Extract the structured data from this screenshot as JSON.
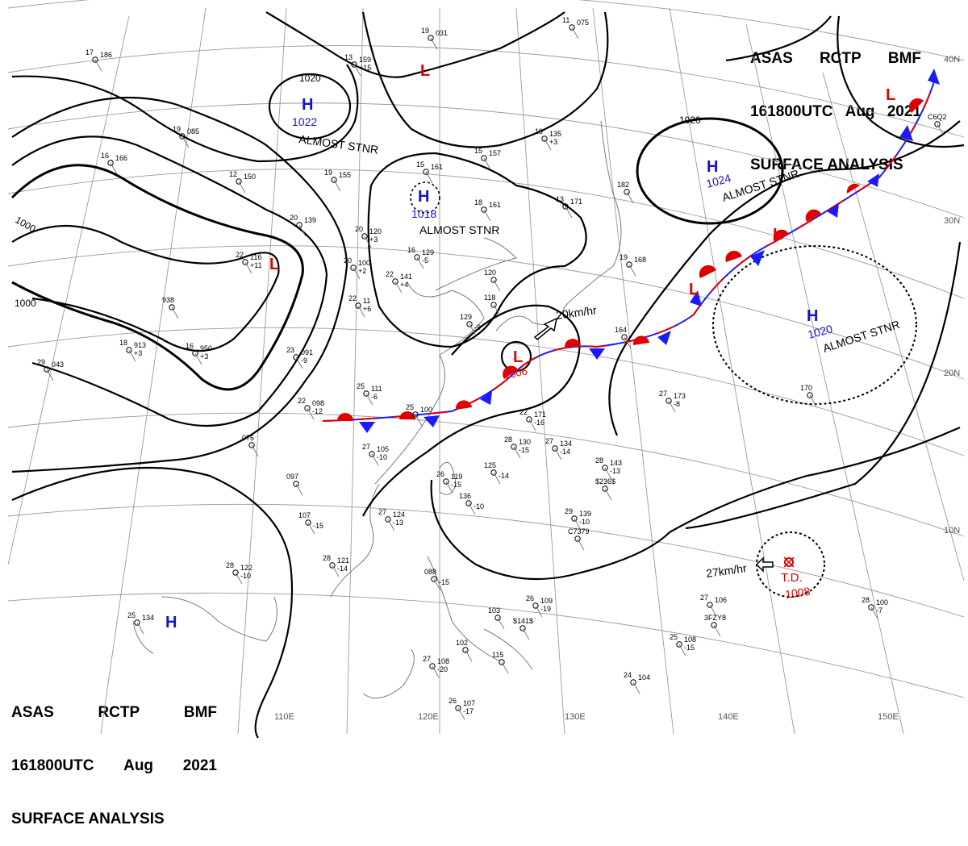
{
  "header": {
    "line1": [
      "ASAS",
      "RCTP",
      "BMF"
    ],
    "line2": [
      "161800UTC",
      "Aug",
      "2021"
    ],
    "line3": "SURFACE ANALYSIS"
  },
  "latitude_labels": [
    "40N",
    "30N",
    "20N",
    "10N"
  ],
  "longitude_labels": [
    "110E",
    "120E",
    "130E",
    "140E",
    "150E"
  ],
  "isobar_labels": [
    "1020",
    "1000",
    "1000",
    "1020"
  ],
  "pressure_centers": [
    {
      "type": "H",
      "value": "1022",
      "note": "ALMOST STNR"
    },
    {
      "type": "H",
      "value": "1018",
      "note": "ALMOST STNR"
    },
    {
      "type": "H",
      "value": "1024",
      "note": "ALMOST STNR"
    },
    {
      "type": "H",
      "value": "1020",
      "note": "ALMOST STNR"
    },
    {
      "type": "H",
      "value": "",
      "note": ""
    },
    {
      "type": "L",
      "value": "1006",
      "note": ""
    },
    {
      "type": "L",
      "value": "",
      "note": ""
    },
    {
      "type": "L",
      "value": "",
      "note": ""
    },
    {
      "type": "L",
      "value": "",
      "note": ""
    },
    {
      "type": "L",
      "value": "",
      "note": ""
    }
  ],
  "tropical_depression": {
    "label": "T.D.",
    "pressure": "1008",
    "motion": "27km/hr"
  },
  "low_motion": "20km/hr",
  "stations": [
    {
      "t": "17",
      "p": "186"
    },
    {
      "t": "13",
      "p": "159",
      "d": "+15"
    },
    {
      "t": "19",
      "p": "031"
    },
    {
      "t": "11",
      "p": "075"
    },
    {
      "t": "19",
      "p": "085"
    },
    {
      "t": "19",
      "p": "135",
      "d": "+3"
    },
    {
      "t": "15",
      "p": "157"
    },
    {
      "t": "16",
      "p": "166"
    },
    {
      "t": "12",
      "p": "150"
    },
    {
      "t": "19",
      "p": "155"
    },
    {
      "t": "15",
      "p": "161"
    },
    {
      "t": "18",
      "p": "161"
    },
    {
      "t": "13",
      "p": "171"
    },
    {
      "t": "182"
    },
    {
      "t": "20",
      "p": "139"
    },
    {
      "t": "20",
      "p": "120",
      "d": "+3"
    },
    {
      "t": "16",
      "p": "129",
      "d": "-5"
    },
    {
      "t": "19",
      "p": "168"
    },
    {
      "t": "22",
      "p": "141",
      "d": "+4"
    },
    {
      "t": "22",
      "p": "116",
      "d": "+11"
    },
    {
      "t": "20",
      "p": "100",
      "d": "+2"
    },
    {
      "t": "22",
      "p": "11",
      "d": "+6"
    },
    {
      "t": "938"
    },
    {
      "t": "18",
      "p": "913",
      "d": "+3"
    },
    {
      "t": "16",
      "p": "950",
      "d": "+3"
    },
    {
      "t": "23",
      "p": "091",
      "d": "-9"
    },
    {
      "t": "29",
      "p": "043"
    },
    {
      "t": "25",
      "p": "111",
      "d": "-6"
    },
    {
      "t": "22",
      "p": "098",
      "d": "-12"
    },
    {
      "t": "25",
      "p": "100"
    },
    {
      "t": "27",
      "p": "105",
      "d": "-10"
    },
    {
      "t": "076"
    },
    {
      "t": "28",
      "p": "130",
      "d": "-15"
    },
    {
      "t": "27",
      "p": "134",
      "d": "-14"
    },
    {
      "t": "22",
      "p": "171",
      "d": "-16"
    },
    {
      "t": "27",
      "p": "173",
      "d": "-8"
    },
    {
      "t": "164"
    },
    {
      "t": "28",
      "p": "143",
      "d": "-13"
    },
    {
      "t": "$236$"
    },
    {
      "t": "26",
      "p": "119",
      "d": "-15"
    },
    {
      "t": "125",
      "d": "-14"
    },
    {
      "t": "136",
      "d": "-10"
    },
    {
      "t": "097"
    },
    {
      "t": "107",
      "d": "-15"
    },
    {
      "t": "27",
      "p": "124",
      "d": "-13"
    },
    {
      "t": "29",
      "p": "139",
      "d": "-10"
    },
    {
      "t": "C7379"
    },
    {
      "t": "28",
      "p": "121",
      "d": "-14"
    },
    {
      "t": "28",
      "p": "122",
      "d": "-10"
    },
    {
      "t": "26",
      "p": "109",
      "d": "-19"
    },
    {
      "t": "103"
    },
    {
      "t": "$141$"
    },
    {
      "t": "27",
      "p": "106"
    },
    {
      "t": "3FZY8"
    },
    {
      "t": "25",
      "p": "108",
      "d": "-15"
    },
    {
      "t": "28",
      "p": "100",
      "d": "-7"
    },
    {
      "t": "27",
      "p": "108",
      "d": "-20"
    },
    {
      "t": "24",
      "p": "104"
    },
    {
      "t": "26",
      "p": "107",
      "d": "-17"
    },
    {
      "t": "25",
      "p": "134"
    },
    {
      "t": "088",
      "d": "-15"
    },
    {
      "t": "170"
    },
    {
      "t": "C6Q2"
    },
    {
      "t": "120"
    },
    {
      "t": "118"
    },
    {
      "t": "129",
      "d": "-9"
    },
    {
      "t": "102"
    },
    {
      "t": "115"
    }
  ]
}
